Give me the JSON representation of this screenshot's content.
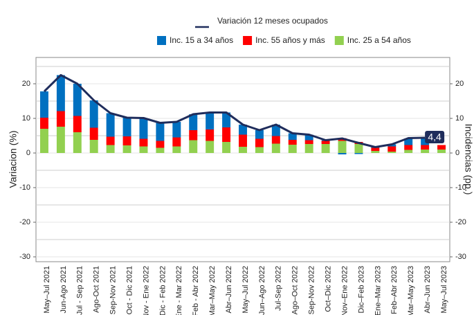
{
  "chart_data": {
    "type": "stacked_bar_line",
    "y_label": "Variacion (%)",
    "y2_label": "Incidencias (pp.)",
    "categories": [
      "May–Jul 2021",
      "Jun-Ago 2021",
      "Jul - Sep 2021",
      "Ago-Oct 2021",
      "Sep-Nov 2021",
      "Oct - Dic 2021",
      "Nov - Ene 2022",
      "Dic - Feb 2022",
      "Ene - Mar 2022",
      "Feb - Abr 2022",
      "Mar–May 2022",
      "Abr–Jun 2022",
      "May–Jul 2022",
      "Jun–Ago 2022",
      "Jul-Sep 2022",
      "Ago–Oct 2022",
      "Sep-Nov 2022",
      "Oct–Dic 2022",
      "Nov–Ene 2022",
      "Dic–Feb 2023",
      "Ene–Mar 2023",
      "Feb–Abr 2023",
      "Mar–May 2023",
      "Abr–Jun 2023",
      "May–Jul 2023"
    ],
    "series": [
      {
        "name": "Inc. 25 a 54 años",
        "color": "#92d050",
        "values": [
          7,
          7.6,
          6,
          3.8,
          2.3,
          2.2,
          1.9,
          1.5,
          1.9,
          3.7,
          3.5,
          3.2,
          1.8,
          1.7,
          2.7,
          2.4,
          2.6,
          2.6,
          3.5,
          2.6,
          0.6,
          0.4,
          0.9,
          1,
          1
        ]
      },
      {
        "name": "Inc. 55 años y más",
        "color": "#ff0000",
        "values": [
          3.2,
          4.5,
          4.7,
          3.5,
          2.4,
          2.6,
          2.2,
          2,
          2.6,
          2.9,
          3.3,
          4.2,
          3.5,
          2.4,
          2.2,
          1.4,
          1.1,
          0.9,
          0.8,
          0.6,
          0.9,
          1.5,
          1.4,
          1.3,
          1.3
        ]
      },
      {
        "name": "Inc. 15 a 34 años",
        "color": "#0070c0",
        "values": [
          7.6,
          10.4,
          9.3,
          7.9,
          6.8,
          5.4,
          6,
          5.2,
          4.5,
          4.6,
          4.9,
          4.3,
          2.9,
          2.5,
          3.3,
          1.9,
          1.6,
          0.2,
          -0.4,
          -0.3,
          0.2,
          0.6,
          1.9,
          2,
          0
        ]
      },
      {
        "name": "Variación 12 meses ocupados",
        "type": "line",
        "color": "#1f2d5c",
        "values": [
          17.8,
          22.5,
          20,
          15.2,
          11.5,
          10.2,
          10.1,
          8.7,
          9,
          11.2,
          11.7,
          11.7,
          8.2,
          6.6,
          8.2,
          5.7,
          5.3,
          3.7,
          4.2,
          2.9,
          1.7,
          2.5,
          4.3,
          4.4,
          null
        ],
        "value_labels": [
          null,
          null,
          null,
          null,
          null,
          null,
          null,
          null,
          null,
          null,
          null,
          null,
          null,
          null,
          null,
          null,
          null,
          null,
          null,
          null,
          null,
          null,
          null,
          "4,4",
          null
        ]
      }
    ],
    "ylim": [
      -31.4,
      27.6
    ],
    "yticks": [
      -30,
      -20,
      -10,
      0,
      10,
      20
    ],
    "y2lim": [
      -31.4,
      27.6
    ],
    "y2ticks": [
      -30,
      -20,
      -10,
      0,
      10,
      20
    ],
    "minor_grid": [
      -25,
      -15,
      -5,
      5,
      15,
      25
    ]
  }
}
